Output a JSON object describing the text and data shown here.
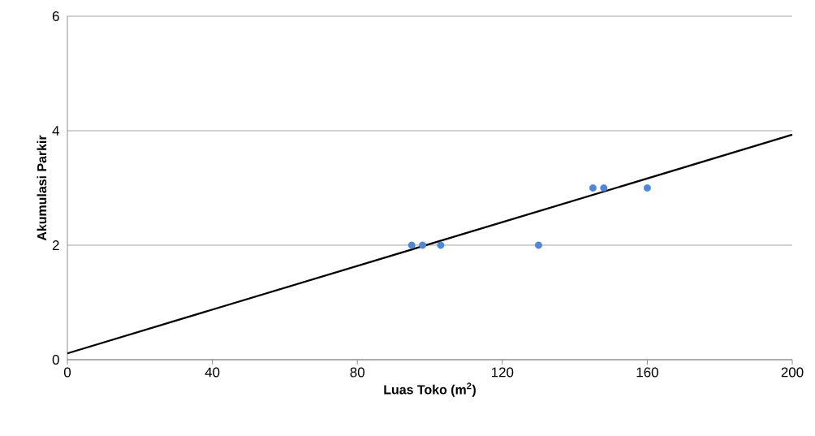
{
  "chart_data": {
    "type": "scatter",
    "xlabel": "Luas Toko (m$^{2}$)",
    "ylabel": "Akumulasi Parkir",
    "xlim": [
      0,
      200
    ],
    "ylim": [
      0,
      6
    ],
    "xticks": [
      0,
      40,
      80,
      120,
      160,
      200
    ],
    "yticks": [
      0,
      2,
      4,
      6
    ],
    "grid": "y",
    "series": [
      {
        "marker": "circle",
        "color": "#4f86d6",
        "x": [
          95,
          98,
          103,
          130,
          145,
          148,
          160
        ],
        "values": [
          2,
          2,
          2,
          2,
          3,
          3,
          3
        ]
      },
      {
        "type": "line",
        "marker": "none",
        "color": "#000000",
        "x": [
          0,
          200
        ],
        "values": [
          0.11,
          3.93
        ]
      }
    ]
  }
}
